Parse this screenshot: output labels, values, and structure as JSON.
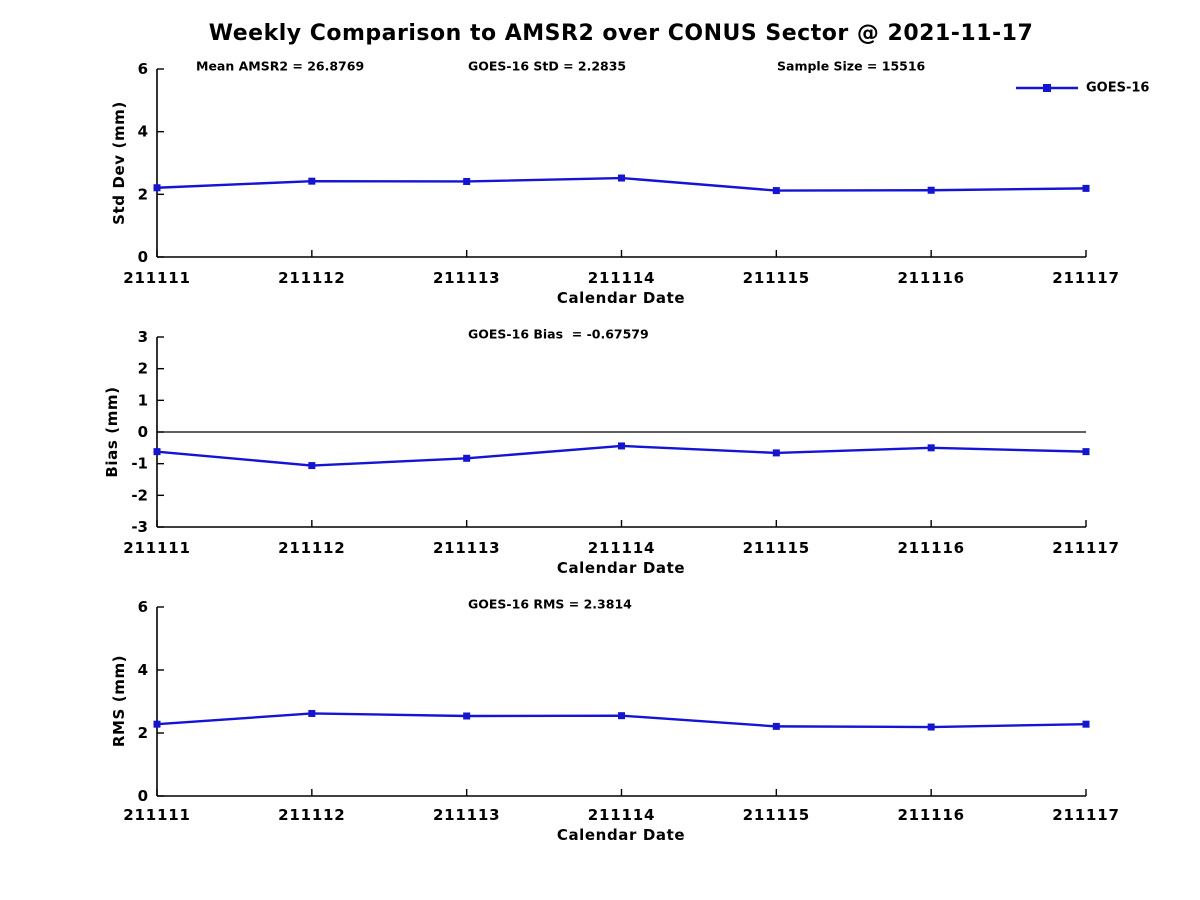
{
  "title": "Weekly Comparison to AMSR2 over CONUS Sector @ 2021-11-17",
  "colors": {
    "line": "#1414D6",
    "axis": "#000000",
    "text": "#000000",
    "background": "#FFFFFF"
  },
  "legend": {
    "label": "GOES-16",
    "marker": "square"
  },
  "stats_row": {
    "mean_amsr2": "Mean AMSR2 = 26.8769",
    "goes16_std": "GOES-16 StD = 2.2835",
    "sample_size": "Sample Size = 15516"
  },
  "chart_data": [
    {
      "type": "line",
      "ylabel": "Std Dev (mm)",
      "xlabel": "Calendar Date",
      "ylim": [
        0,
        6
      ],
      "yticks": [
        0,
        2,
        4,
        6
      ],
      "grid": false,
      "zero_line": false,
      "annotation": "",
      "categories": [
        "211111",
        "211112",
        "211113",
        "211114",
        "211115",
        "211116",
        "211117"
      ],
      "series": [
        {
          "name": "GOES-16",
          "marker": "square",
          "values": [
            2.21,
            2.42,
            2.41,
            2.52,
            2.12,
            2.13,
            2.19
          ]
        }
      ]
    },
    {
      "type": "line",
      "ylabel": "Bias (mm)",
      "xlabel": "Calendar Date",
      "ylim": [
        -3,
        3
      ],
      "yticks": [
        3,
        2,
        1,
        0,
        -1,
        -2,
        -3
      ],
      "grid": false,
      "zero_line": true,
      "annotation": "GOES-16 Bias  = -0.67579",
      "categories": [
        "211111",
        "211112",
        "211113",
        "211114",
        "211115",
        "211116",
        "211117"
      ],
      "series": [
        {
          "name": "GOES-16",
          "marker": "square",
          "values": [
            -0.62,
            -1.06,
            -0.83,
            -0.44,
            -0.66,
            -0.5,
            -0.62
          ]
        }
      ]
    },
    {
      "type": "line",
      "ylabel": "RMS (mm)",
      "xlabel": "Calendar Date",
      "ylim": [
        0,
        6
      ],
      "yticks": [
        0,
        2,
        4,
        6
      ],
      "grid": false,
      "zero_line": false,
      "annotation": "GOES-16 RMS = 2.3814",
      "categories": [
        "211111",
        "211112",
        "211113",
        "211114",
        "211115",
        "211116",
        "211117"
      ],
      "series": [
        {
          "name": "GOES-16",
          "marker": "square",
          "values": [
            2.28,
            2.62,
            2.54,
            2.55,
            2.21,
            2.19,
            2.28
          ]
        }
      ]
    }
  ]
}
